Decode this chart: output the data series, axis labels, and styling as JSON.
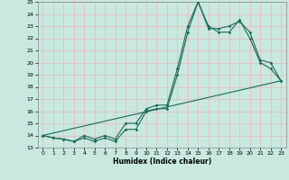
{
  "title": "",
  "xlabel": "Humidex (Indice chaleur)",
  "bg_color": "#c8e8e0",
  "grid_color": "#e8b8b8",
  "line_color": "#1a6b5a",
  "xlim": [
    -0.5,
    23.5
  ],
  "ylim": [
    13,
    25
  ],
  "xticks": [
    0,
    1,
    2,
    3,
    4,
    5,
    6,
    7,
    8,
    9,
    10,
    11,
    12,
    13,
    14,
    15,
    16,
    17,
    18,
    19,
    20,
    21,
    22,
    23
  ],
  "yticks": [
    13,
    14,
    15,
    16,
    17,
    18,
    19,
    20,
    21,
    22,
    23,
    24,
    25
  ],
  "line1_x": [
    0,
    1,
    2,
    3,
    4,
    5,
    6,
    7,
    8,
    9,
    10,
    11,
    12,
    13,
    14,
    15,
    16,
    17,
    18,
    19,
    20,
    21,
    22,
    23
  ],
  "line1_y": [
    14.0,
    13.8,
    13.7,
    13.5,
    13.8,
    13.5,
    13.8,
    13.5,
    14.5,
    14.5,
    16.0,
    16.2,
    16.2,
    19.0,
    22.5,
    25.0,
    23.0,
    22.5,
    22.5,
    23.5,
    22.0,
    20.0,
    19.5,
    18.5
  ],
  "line2_x": [
    0,
    1,
    2,
    3,
    4,
    5,
    6,
    7,
    8,
    9,
    10,
    11,
    12,
    13,
    14,
    15,
    16,
    17,
    18,
    19,
    20,
    21,
    22,
    23
  ],
  "line2_y": [
    14.0,
    13.8,
    13.7,
    13.5,
    14.0,
    13.7,
    14.0,
    13.7,
    15.0,
    15.0,
    16.2,
    16.5,
    16.5,
    19.5,
    23.0,
    25.0,
    22.8,
    22.8,
    23.0,
    23.4,
    22.5,
    20.2,
    20.0,
    18.5
  ],
  "line3_x": [
    0,
    23
  ],
  "line3_y": [
    14.0,
    18.5
  ]
}
